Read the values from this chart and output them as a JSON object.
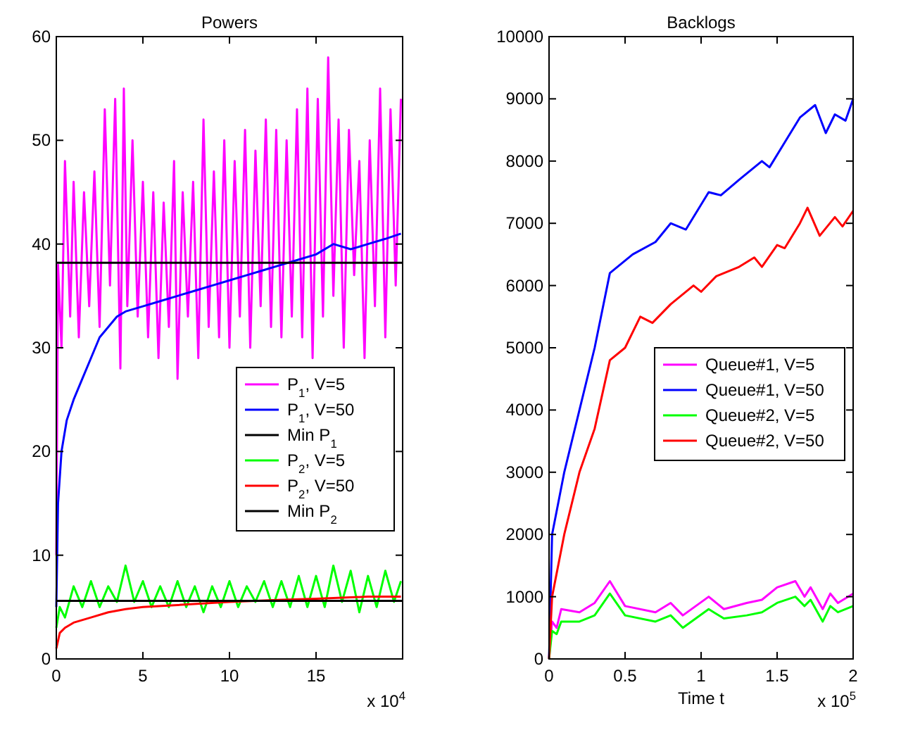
{
  "chart_data": [
    {
      "type": "line",
      "title": "Powers",
      "xlim": [
        0,
        20
      ],
      "xticks": [
        0,
        5,
        10,
        15
      ],
      "ylim": [
        0,
        60
      ],
      "yticks": [
        0,
        10,
        20,
        30,
        40,
        50,
        60
      ],
      "legend": "right",
      "grid": false,
      "annotations": [
        "x 10$^{4}$"
      ],
      "series": [
        {
          "name": "P$_{1}$, V=5",
          "color": "#ff00ff",
          "x": [
            0,
            0.1,
            0.3,
            0.5,
            0.8,
            1.0,
            1.3,
            1.6,
            1.9,
            2.2,
            2.5,
            2.8,
            3.1,
            3.4,
            3.7,
            3.9,
            4.1,
            4.4,
            4.7,
            5.0,
            5.3,
            5.6,
            5.9,
            6.2,
            6.5,
            6.8,
            7.0,
            7.3,
            7.6,
            7.9,
            8.2,
            8.5,
            8.8,
            9.1,
            9.4,
            9.7,
            10.0,
            10.3,
            10.6,
            10.9,
            11.2,
            11.5,
            11.8,
            12.1,
            12.4,
            12.7,
            13.0,
            13.3,
            13.6,
            13.9,
            14.2,
            14.5,
            14.8,
            15.1,
            15.4,
            15.7,
            16.0,
            16.3,
            16.6,
            16.9,
            17.2,
            17.5,
            17.8,
            18.1,
            18.4,
            18.7,
            19.0,
            19.3,
            19.6,
            19.9
          ],
          "values": [
            10,
            38,
            30,
            48,
            33,
            46,
            31,
            45,
            34,
            47,
            32,
            53,
            36,
            54,
            28,
            55,
            34,
            50,
            33,
            46,
            31,
            45,
            29,
            44,
            32,
            48,
            27,
            45,
            33,
            46,
            29,
            52,
            32,
            47,
            31,
            50,
            30,
            48,
            33,
            51,
            30,
            49,
            34,
            52,
            32,
            51,
            31,
            50,
            33,
            53,
            31,
            55,
            29,
            54,
            33,
            58,
            35,
            52,
            30,
            51,
            37,
            48,
            29,
            50,
            34,
            55,
            31,
            53,
            36,
            54
          ]
        },
        {
          "name": "P$_{1}$, V=50",
          "color": "#0000ff",
          "x": [
            0,
            0.1,
            0.3,
            0.6,
            1,
            1.5,
            2,
            2.5,
            3,
            3.5,
            4,
            5,
            6,
            7,
            8,
            9,
            10,
            11,
            12,
            13,
            14,
            15,
            16,
            17,
            18,
            19,
            19.9
          ],
          "values": [
            5,
            15,
            20,
            23,
            25,
            27,
            29,
            31,
            32,
            33,
            33.5,
            34,
            34.5,
            35,
            35.5,
            36,
            36.5,
            37,
            37.5,
            38,
            38.5,
            39,
            40,
            39.5,
            40,
            40.5,
            41
          ]
        },
        {
          "name": "Min P$_{1}$",
          "color": "#000000",
          "x": [
            0,
            20
          ],
          "values": [
            38.2,
            38.2
          ]
        },
        {
          "name": "P$_{2}$, V=5",
          "color": "#00ff00",
          "x": [
            0,
            0.2,
            0.5,
            1,
            1.5,
            2,
            2.5,
            3,
            3.5,
            4,
            4.5,
            5,
            5.5,
            6,
            6.5,
            7,
            7.5,
            8,
            8.5,
            9,
            9.5,
            10,
            10.5,
            11,
            11.5,
            12,
            12.5,
            13,
            13.5,
            14,
            14.5,
            15,
            15.5,
            16,
            16.5,
            17,
            17.5,
            18,
            18.5,
            19,
            19.5,
            19.9
          ],
          "values": [
            3,
            5,
            4,
            7,
            5,
            7.5,
            5,
            7,
            5.5,
            9,
            5.5,
            7.5,
            5,
            7,
            5,
            7.5,
            5,
            7,
            4.5,
            7,
            5,
            7.5,
            5,
            7,
            5.5,
            7.5,
            5,
            7.5,
            5,
            8,
            5,
            8,
            5,
            9,
            5.5,
            8.5,
            4.5,
            8,
            5,
            8.5,
            5.5,
            7.5
          ]
        },
        {
          "name": "P$_{2}$, V=50",
          "color": "#ff0000",
          "x": [
            0,
            0.2,
            0.5,
            1,
            2,
            3,
            4,
            5,
            7,
            10,
            13,
            15,
            18,
            19.9
          ],
          "values": [
            1,
            2.5,
            3,
            3.5,
            4,
            4.5,
            4.8,
            5,
            5.2,
            5.5,
            5.7,
            5.8,
            6,
            6
          ]
        },
        {
          "name": "Min P$_{2}$",
          "color": "#000000",
          "x": [
            0,
            20
          ],
          "values": [
            5.6,
            5.6
          ]
        }
      ]
    },
    {
      "type": "line",
      "title": "Backlogs",
      "xlabel": "Time t",
      "xlim": [
        0,
        2
      ],
      "xticks": [
        0,
        0.5,
        1,
        1.5,
        2
      ],
      "ylim": [
        0,
        10000
      ],
      "yticks": [
        0,
        1000,
        2000,
        3000,
        4000,
        5000,
        6000,
        7000,
        8000,
        9000,
        10000
      ],
      "legend": "right",
      "grid": false,
      "annotations": [
        "x 10$^{5}$"
      ],
      "series": [
        {
          "name": "Queue#1, V=5",
          "color": "#ff00ff",
          "x": [
            0,
            0.02,
            0.05,
            0.08,
            0.2,
            0.3,
            0.4,
            0.5,
            0.7,
            0.8,
            0.88,
            1.05,
            1.15,
            1.3,
            1.4,
            1.5,
            1.62,
            1.68,
            1.72,
            1.8,
            1.85,
            1.9,
            2
          ],
          "values": [
            0,
            600,
            500,
            800,
            750,
            900,
            1250,
            850,
            750,
            900,
            700,
            1000,
            800,
            900,
            950,
            1150,
            1250,
            1000,
            1150,
            800,
            1050,
            900,
            1050
          ]
        },
        {
          "name": "Queue#1, V=50",
          "color": "#0000ff",
          "x": [
            0,
            0.02,
            0.1,
            0.2,
            0.3,
            0.4,
            0.55,
            0.7,
            0.8,
            0.9,
            1.05,
            1.13,
            1.25,
            1.4,
            1.45,
            1.55,
            1.65,
            1.75,
            1.82,
            1.88,
            1.95,
            2
          ],
          "values": [
            0,
            2000,
            3000,
            4000,
            5000,
            6200,
            6500,
            6700,
            7000,
            6900,
            7500,
            7450,
            7700,
            8000,
            7900,
            8300,
            8700,
            8900,
            8450,
            8750,
            8650,
            9000
          ]
        },
        {
          "name": "Queue#2, V=5",
          "color": "#00ff00",
          "x": [
            0,
            0.02,
            0.05,
            0.08,
            0.2,
            0.3,
            0.4,
            0.5,
            0.7,
            0.8,
            0.88,
            1.05,
            1.15,
            1.3,
            1.4,
            1.5,
            1.62,
            1.68,
            1.72,
            1.8,
            1.85,
            1.9,
            2
          ],
          "values": [
            0,
            450,
            400,
            600,
            600,
            700,
            1050,
            700,
            600,
            700,
            500,
            800,
            650,
            700,
            750,
            900,
            1000,
            850,
            950,
            600,
            850,
            750,
            850
          ]
        },
        {
          "name": "Queue#2, V=50",
          "color": "#ff0000",
          "x": [
            0,
            0.02,
            0.1,
            0.2,
            0.3,
            0.4,
            0.5,
            0.6,
            0.68,
            0.8,
            0.95,
            1.0,
            1.1,
            1.25,
            1.35,
            1.4,
            1.5,
            1.55,
            1.65,
            1.7,
            1.78,
            1.88,
            1.93,
            2
          ],
          "values": [
            0,
            1000,
            2000,
            3000,
            3700,
            4800,
            5000,
            5500,
            5400,
            5700,
            6000,
            5900,
            6150,
            6300,
            6450,
            6300,
            6650,
            6600,
            7000,
            7250,
            6800,
            7100,
            6950,
            7200
          ]
        }
      ]
    }
  ]
}
